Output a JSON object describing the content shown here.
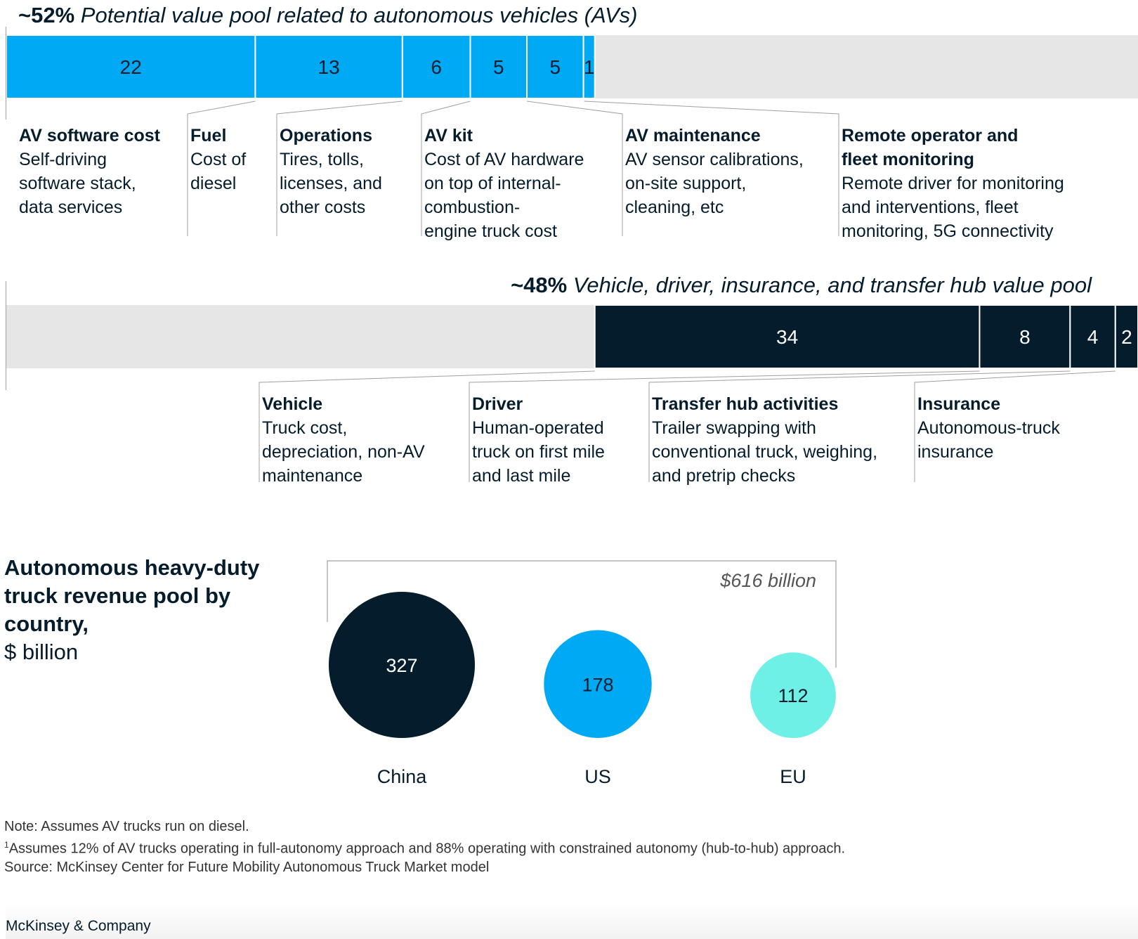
{
  "colors": {
    "brand_blue": "#00a9f4",
    "deep_navy": "#051c2c",
    "cyan": "#6ef0e6",
    "track_gray": "#e6e6e6",
    "guide_gray": "#a0a0a0"
  },
  "sections": {
    "av_pool": {
      "pct": "~52%",
      "title": "Potential value pool related to autonomous vehicles (AVs)",
      "categories": [
        {
          "title": "AV software cost",
          "lines": [
            "Self-driving",
            "software stack,",
            "data services"
          ]
        },
        {
          "title": "Fuel",
          "lines": [
            "Cost of",
            "diesel"
          ]
        },
        {
          "title": "Operations",
          "lines": [
            "Tires, tolls,",
            "licenses, and",
            "other costs"
          ]
        },
        {
          "title": "AV kit",
          "lines": [
            "Cost of AV hardware",
            "on top of internal-",
            "combustion-",
            "engine truck cost"
          ]
        },
        {
          "title": "AV maintenance",
          "lines": [
            "AV sensor calibrations,",
            "on-site support,",
            "cleaning, etc"
          ]
        },
        {
          "title_lines": [
            "Remote operator and",
            "fleet monitoring"
          ],
          "lines": [
            "Remote driver for monitoring",
            "and interventions, fleet",
            "monitoring, 5G connectivity"
          ]
        }
      ]
    },
    "other_pool": {
      "pct": "~48%",
      "title": "Vehicle, driver, insurance, and transfer hub value pool",
      "categories": [
        {
          "title": "Vehicle",
          "lines": [
            "Truck cost,",
            "depreciation, non-AV",
            "maintenance"
          ]
        },
        {
          "title": "Driver",
          "lines": [
            "Human-operated",
            "truck on first mile",
            "and last mile"
          ]
        },
        {
          "title": "Transfer hub activities",
          "lines": [
            "Trailer swapping with",
            "conventional truck, weighing,",
            "and pretrip checks"
          ]
        },
        {
          "title": "Insurance",
          "lines": [
            "Autonomous-truck",
            "insurance"
          ]
        }
      ]
    },
    "bubbles": {
      "title_bold": [
        "Autonomous heavy-duty",
        "truck revenue pool by",
        "country,"
      ],
      "unit": "$ billion",
      "total_label": "$616 billion"
    }
  },
  "chart_data": [
    {
      "type": "bar",
      "orientation": "horizontal-stacked",
      "title": "~52% Potential value pool related to autonomous vehicles (AVs)",
      "categories": [
        "AV software cost",
        "Fuel",
        "Operations",
        "AV kit",
        "AV maintenance",
        "Remote operator and fleet monitoring"
      ],
      "values": [
        22,
        13,
        6,
        5,
        5,
        1
      ],
      "scale_total": 100,
      "color": "#00a9f4",
      "align": "left"
    },
    {
      "type": "bar",
      "orientation": "horizontal-stacked",
      "title": "~48% Vehicle, driver, insurance, and transfer hub value pool",
      "categories": [
        "Vehicle",
        "Driver",
        "Transfer hub activities",
        "Insurance"
      ],
      "values": [
        34,
        8,
        4,
        2
      ],
      "scale_total": 100,
      "color": "#051c2c",
      "align": "right"
    },
    {
      "type": "bubble",
      "title": "Autonomous heavy-duty truck revenue pool by country, $ billion",
      "categories": [
        "China",
        "US",
        "EU"
      ],
      "values": [
        327,
        178,
        112
      ],
      "colors": [
        "#051c2c",
        "#00a9f4",
        "#6ef0e6"
      ],
      "total": 616
    }
  ],
  "footnotes": {
    "note": "Note: Assumes AV trucks run on diesel.",
    "marker": "1",
    "footnote": "Assumes 12% of AV trucks operating in full-autonomy approach and 88% operating with constrained autonomy (hub-to-hub) approach.",
    "source": "Source: McKinsey Center for Future Mobility Autonomous Truck Market model"
  },
  "brand": "McKinsey & Company"
}
